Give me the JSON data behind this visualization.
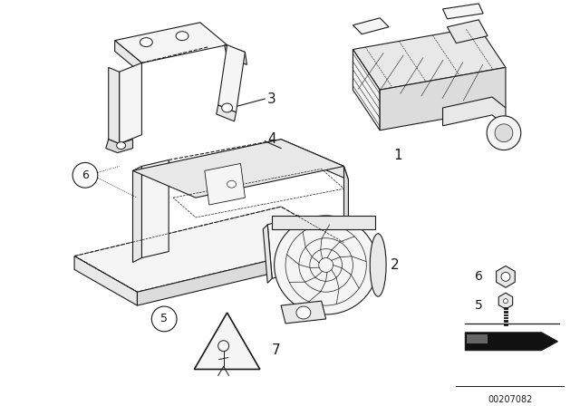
{
  "bg_color": "#ffffff",
  "line_color": "#1a1a1a",
  "fig_width": 6.4,
  "fig_height": 4.48,
  "dpi": 100,
  "catalog_number": "00207082"
}
